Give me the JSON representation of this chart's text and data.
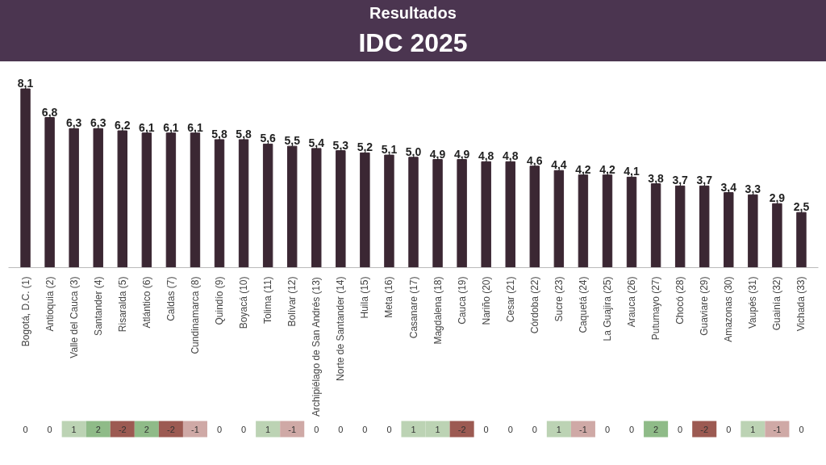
{
  "chart_data": {
    "type": "bar",
    "title": "IDC 2025",
    "subtitle": "Resultados",
    "categories": [
      "Bogotá, D.C. (1)",
      "Antioquia (2)",
      "Valle del Cauca (3)",
      "Santander (4)",
      "Risaralda (5)",
      "Atlántico (6)",
      "Caldas (7)",
      "Cundinamarca (8)",
      "Quindío (9)",
      "Boyacá (10)",
      "Tolima (11)",
      "Bolívar (12)",
      "Archipiélago de San Andrés (13)",
      "Norte de Santander (14)",
      "Huila (15)",
      "Meta (16)",
      "Casanare (17)",
      "Magdalena (18)",
      "Cauca (19)",
      "Nariño (20)",
      "Cesar (21)",
      "Córdoba (22)",
      "Sucre (23)",
      "Caquetá (24)",
      "La Guajira (25)",
      "Arauca (26)",
      "Putumayo (27)",
      "Chocó (28)",
      "Guaviare (29)",
      "Amazonas (30)",
      "Vaupés (31)",
      "Guainía (32)",
      "Vichada (33)"
    ],
    "values": [
      8.1,
      6.8,
      6.3,
      6.3,
      6.2,
      6.1,
      6.1,
      6.1,
      5.8,
      5.8,
      5.6,
      5.5,
      5.4,
      5.3,
      5.2,
      5.1,
      5.0,
      4.9,
      4.9,
      4.8,
      4.8,
      4.6,
      4.4,
      4.2,
      4.2,
      4.1,
      3.8,
      3.7,
      3.7,
      3.4,
      3.3,
      2.9,
      2.5
    ],
    "value_labels": [
      "8,1",
      "6,8",
      "6,3",
      "6,3",
      "6,2",
      "6,1",
      "6,1",
      "6,1",
      "5,8",
      "5,8",
      "5,6",
      "5,5",
      "5,4",
      "5,3",
      "5,2",
      "5,1",
      "5,0",
      "4,9",
      "4,9",
      "4,8",
      "4,8",
      "4,6",
      "4,4",
      "4,2",
      "4,2",
      "4,1",
      "3,8",
      "3,7",
      "3,7",
      "3,4",
      "3,3",
      "2,9",
      "2,5"
    ],
    "color": "#3b2733",
    "grid": false,
    "annotations": [
      "0",
      "0",
      "1",
      "2",
      "-2",
      "2",
      "-2",
      "-1",
      "0",
      "0",
      "1",
      "-1",
      "0",
      "0",
      "0",
      "0",
      "1",
      "1",
      "-2",
      "0",
      "0",
      "0",
      "1",
      "-1",
      "0",
      "0",
      "2",
      "0",
      "-2",
      "0",
      "1",
      "-1",
      "0"
    ]
  }
}
